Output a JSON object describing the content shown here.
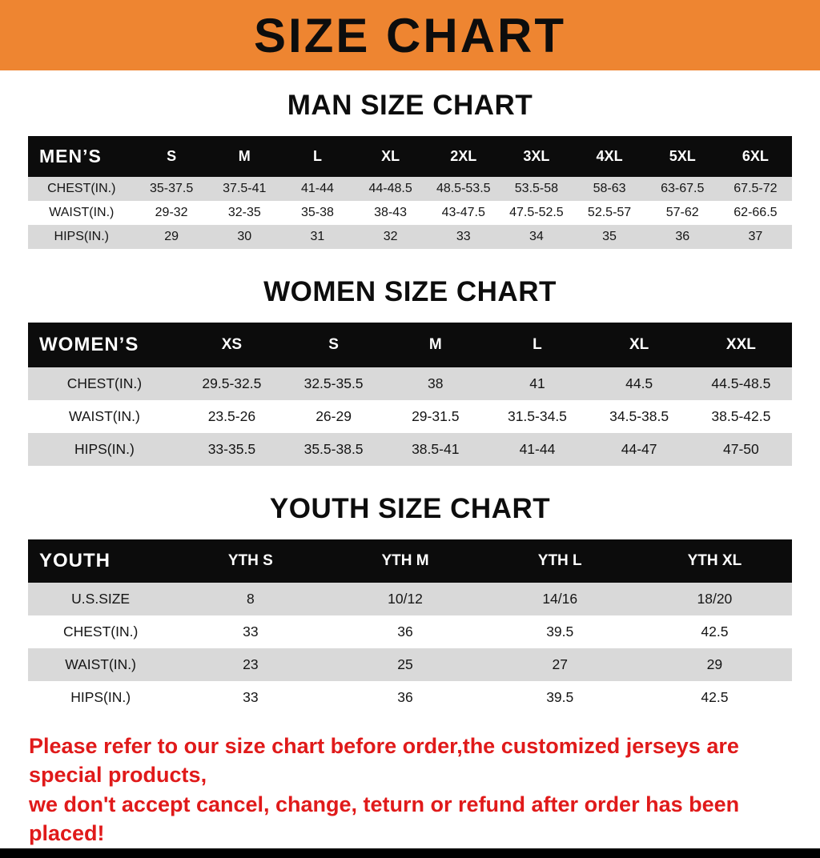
{
  "banner": {
    "title": "SIZE CHART"
  },
  "colors": {
    "banner_bg": "#ee8531",
    "header_black": "#0c0c0c",
    "row_gray": "#d9d9d9",
    "note_red": "#e01a1a"
  },
  "sections": [
    {
      "id": "men",
      "heading": "MAN SIZE CHART",
      "table": {
        "label": "MEN’S",
        "columns": [
          "S",
          "M",
          "L",
          "XL",
          "2XL",
          "3XL",
          "4XL",
          "5XL",
          "6XL"
        ],
        "rows": [
          {
            "label": "CHEST(IN.)",
            "values": [
              "35-37.5",
              "37.5-41",
              "41-44",
              "44-48.5",
              "48.5-53.5",
              "53.5-58",
              "58-63",
              "63-67.5",
              "67.5-72"
            ]
          },
          {
            "label": "WAIST(IN.)",
            "values": [
              "29-32",
              "32-35",
              "35-38",
              "38-43",
              "43-47.5",
              "47.5-52.5",
              "52.5-57",
              "57-62",
              "62-66.5"
            ]
          },
          {
            "label": "HIPS(IN.)",
            "values": [
              "29",
              "30",
              "31",
              "32",
              "33",
              "34",
              "35",
              "36",
              "37"
            ]
          }
        ]
      }
    },
    {
      "id": "women",
      "heading": "WOMEN SIZE CHART",
      "table": {
        "label": "WOMEN’S",
        "columns": [
          "XS",
          "S",
          "M",
          "L",
          "XL",
          "XXL"
        ],
        "rows": [
          {
            "label": "CHEST(IN.)",
            "values": [
              "29.5-32.5",
              "32.5-35.5",
              "38",
              "41",
              "44.5",
              "44.5-48.5"
            ]
          },
          {
            "label": "WAIST(IN.)",
            "values": [
              "23.5-26",
              "26-29",
              "29-31.5",
              "31.5-34.5",
              "34.5-38.5",
              "38.5-42.5"
            ]
          },
          {
            "label": "HIPS(IN.)",
            "values": [
              "33-35.5",
              "35.5-38.5",
              "38.5-41",
              "41-44",
              "44-47",
              "47-50"
            ]
          }
        ]
      }
    },
    {
      "id": "youth",
      "heading": "YOUTH SIZE CHART",
      "table": {
        "label": "YOUTH",
        "columns": [
          "YTH S",
          "YTH M",
          "YTH L",
          "YTH XL"
        ],
        "rows": [
          {
            "label": "U.S.SIZE",
            "values": [
              "8",
              "10/12",
              "14/16",
              "18/20"
            ]
          },
          {
            "label": "CHEST(IN.)",
            "values": [
              "33",
              "36",
              "39.5",
              "42.5"
            ]
          },
          {
            "label": "WAIST(IN.)",
            "values": [
              "23",
              "25",
              "27",
              "29"
            ]
          },
          {
            "label": "HIPS(IN.)",
            "values": [
              "33",
              "36",
              "39.5",
              "42.5"
            ]
          }
        ]
      }
    }
  ],
  "note": {
    "line1": "Please refer to our size chart before order,the customized jerseys are special products,",
    "line2": "we don't accept cancel, change, teturn or refund after order has been placed!"
  }
}
